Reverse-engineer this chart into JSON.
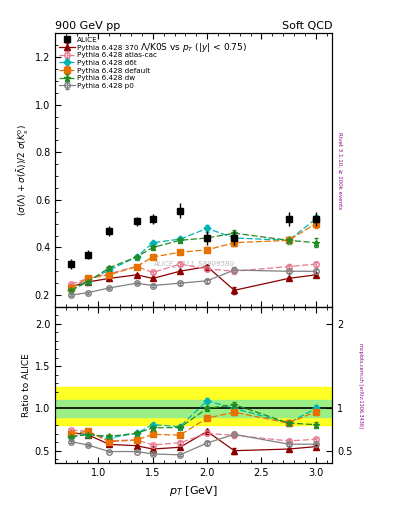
{
  "title_top": "900 GeV pp",
  "title_right": "Soft QCD",
  "subtitle": "Λ/K0S vs p_{T} (|y| < 0.75)",
  "ylabel_main": "$(\\sigma(\\Lambda)+\\sigma(\\bar{\\Lambda}))/2\\ \\sigma(K^0_s)$",
  "ylabel_ratio": "Ratio to ALICE",
  "xlabel": "p_{T} [GeV]",
  "right_label_top": "Rivet 3.1.10, ≥ 100k events",
  "right_label_bot": "mcplots.cern.ch [arXiv:1306.3436]",
  "watermark": "ALICE_2011_S8909580",
  "xlim": [
    0.6,
    3.15
  ],
  "ylim_main": [
    0.15,
    1.3
  ],
  "ylim_ratio": [
    0.35,
    2.2
  ],
  "alice_x": [
    0.75,
    0.9,
    1.1,
    1.35,
    1.5,
    1.75,
    2.0,
    2.25,
    2.75,
    3.0
  ],
  "alice_y": [
    0.33,
    0.37,
    0.47,
    0.51,
    0.52,
    0.555,
    0.44,
    0.44,
    0.52,
    0.52
  ],
  "alice_yerr": [
    0.02,
    0.02,
    0.02,
    0.02,
    0.02,
    0.03,
    0.03,
    0.03,
    0.03,
    0.03
  ],
  "p370_x": [
    0.75,
    0.9,
    1.1,
    1.35,
    1.5,
    1.75,
    2.0,
    2.25,
    2.75,
    3.0
  ],
  "p370_y": [
    0.235,
    0.255,
    0.27,
    0.285,
    0.27,
    0.3,
    0.32,
    0.22,
    0.27,
    0.285
  ],
  "p370_yerr": [
    0.004,
    0.004,
    0.004,
    0.004,
    0.004,
    0.007,
    0.008,
    0.015,
    0.008,
    0.008
  ],
  "patlas_x": [
    0.75,
    0.9,
    1.1,
    1.35,
    1.5,
    1.75,
    2.0,
    2.25,
    2.75,
    3.0
  ],
  "patlas_y": [
    0.245,
    0.27,
    0.29,
    0.32,
    0.295,
    0.33,
    0.31,
    0.3,
    0.32,
    0.33
  ],
  "patlas_yerr": [
    0.004,
    0.004,
    0.004,
    0.005,
    0.005,
    0.008,
    0.009,
    0.012,
    0.009,
    0.01
  ],
  "pd6t_x": [
    0.75,
    0.9,
    1.1,
    1.35,
    1.5,
    1.75,
    2.0,
    2.25,
    2.75,
    3.0
  ],
  "pd6t_y": [
    0.22,
    0.26,
    0.305,
    0.36,
    0.42,
    0.435,
    0.48,
    0.44,
    0.43,
    0.52
  ],
  "pd6t_yerr": [
    0.004,
    0.005,
    0.006,
    0.008,
    0.009,
    0.01,
    0.014,
    0.018,
    0.014,
    0.018
  ],
  "pdef_x": [
    0.75,
    0.9,
    1.1,
    1.35,
    1.5,
    1.75,
    2.0,
    2.25,
    2.75,
    3.0
  ],
  "pdef_y": [
    0.23,
    0.27,
    0.285,
    0.32,
    0.36,
    0.38,
    0.39,
    0.42,
    0.43,
    0.5
  ],
  "pdef_yerr": [
    0.004,
    0.005,
    0.005,
    0.007,
    0.007,
    0.009,
    0.01,
    0.014,
    0.013,
    0.018
  ],
  "pdw_x": [
    0.75,
    0.9,
    1.1,
    1.35,
    1.5,
    1.75,
    2.0,
    2.25,
    2.75,
    3.0
  ],
  "pdw_y": [
    0.22,
    0.255,
    0.315,
    0.36,
    0.4,
    0.43,
    0.44,
    0.46,
    0.43,
    0.42
  ],
  "pdw_yerr": [
    0.004,
    0.005,
    0.006,
    0.008,
    0.009,
    0.01,
    0.011,
    0.015,
    0.013,
    0.018
  ],
  "pp0_x": [
    0.75,
    0.9,
    1.1,
    1.35,
    1.5,
    1.75,
    2.0,
    2.25,
    2.75,
    3.0
  ],
  "pp0_y": [
    0.2,
    0.21,
    0.23,
    0.25,
    0.24,
    0.25,
    0.26,
    0.305,
    0.3,
    0.3
  ],
  "pp0_yerr": [
    0.004,
    0.004,
    0.004,
    0.005,
    0.005,
    0.007,
    0.008,
    0.011,
    0.009,
    0.009
  ],
  "band_yellow_lo": 0.8,
  "band_yellow_hi": 1.25,
  "band_green_lo": 0.9,
  "band_green_hi": 1.1,
  "color_alice": "#000000",
  "color_370": "#8b0000",
  "color_atlas": "#e87a90",
  "color_d6t": "#00b4b4",
  "color_default": "#e87000",
  "color_dw": "#228b22",
  "color_p0": "#808080"
}
